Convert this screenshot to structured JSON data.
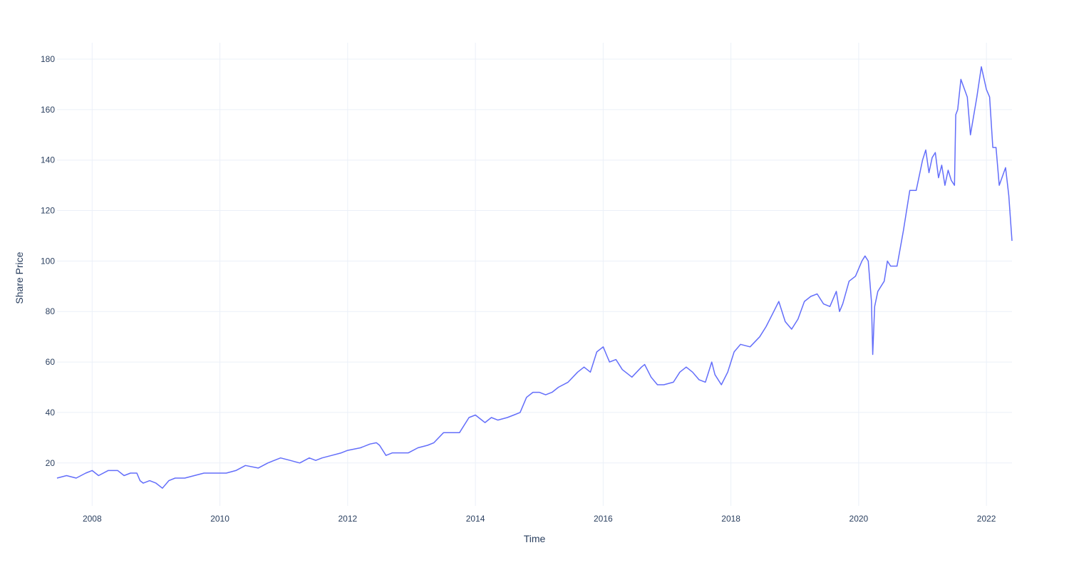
{
  "chart_data": {
    "type": "line",
    "title": "",
    "xlabel": "Time",
    "ylabel": "Share Price",
    "xlim": [
      2007.45,
      2022.4
    ],
    "ylim": [
      3,
      186.5
    ],
    "grid": true,
    "legend": "none",
    "x_ticks": [
      {
        "value": 2008,
        "label": "2008"
      },
      {
        "value": 2010,
        "label": "2010"
      },
      {
        "value": 2012,
        "label": "2012"
      },
      {
        "value": 2014,
        "label": "2014"
      },
      {
        "value": 2016,
        "label": "2016"
      },
      {
        "value": 2018,
        "label": "2018"
      },
      {
        "value": 2020,
        "label": "2020"
      },
      {
        "value": 2022,
        "label": "2022"
      }
    ],
    "y_ticks": [
      {
        "value": 20,
        "label": "20"
      },
      {
        "value": 40,
        "label": "40"
      },
      {
        "value": 60,
        "label": "60"
      },
      {
        "value": 80,
        "label": "80"
      },
      {
        "value": 100,
        "label": "100"
      },
      {
        "value": 120,
        "label": "120"
      },
      {
        "value": 140,
        "label": "140"
      },
      {
        "value": 160,
        "label": "160"
      },
      {
        "value": 180,
        "label": "180"
      }
    ],
    "colors": {
      "line": "#636efa",
      "grid": "#ebf0f8",
      "text": "#2a3f5f"
    },
    "series": [
      {
        "x": [
          2007.45,
          2007.6,
          2007.75,
          2007.9,
          2008.0,
          2008.1,
          2008.25,
          2008.4,
          2008.5,
          2008.6,
          2008.7,
          2008.75,
          2008.8,
          2008.9,
          2009.0,
          2009.1,
          2009.2,
          2009.3,
          2009.45,
          2009.6,
          2009.75,
          2009.9,
          2010.0,
          2010.1,
          2010.25,
          2010.4,
          2010.6,
          2010.75,
          2010.95,
          2011.1,
          2011.25,
          2011.4,
          2011.5,
          2011.6,
          2011.75,
          2011.9,
          2012.0,
          2012.2,
          2012.35,
          2012.45,
          2012.5,
          2012.6,
          2012.7,
          2012.8,
          2012.95,
          2013.1,
          2013.25,
          2013.35,
          2013.5,
          2013.65,
          2013.75,
          2013.9,
          2014.0,
          2014.1,
          2014.15,
          2014.25,
          2014.35,
          2014.5,
          2014.6,
          2014.7,
          2014.8,
          2014.9,
          2015.0,
          2015.1,
          2015.2,
          2015.3,
          2015.45,
          2015.6,
          2015.7,
          2015.8,
          2015.9,
          2016.0,
          2016.05,
          2016.1,
          2016.2,
          2016.3,
          2016.45,
          2016.6,
          2016.65,
          2016.75,
          2016.85,
          2016.95,
          2017.1,
          2017.2,
          2017.3,
          2017.4,
          2017.5,
          2017.6,
          2017.7,
          2017.75,
          2017.85,
          2017.95,
          2018.05,
          2018.15,
          2018.3,
          2018.45,
          2018.55,
          2018.65,
          2018.75,
          2018.85,
          2018.95,
          2019.05,
          2019.15,
          2019.25,
          2019.35,
          2019.45,
          2019.55,
          2019.65,
          2019.7,
          2019.75,
          2019.85,
          2019.95,
          2020.05,
          2020.1,
          2020.15,
          2020.2,
          2020.22,
          2020.25,
          2020.3,
          2020.4,
          2020.45,
          2020.5,
          2020.6,
          2020.7,
          2020.8,
          2020.9,
          2021.0,
          2021.05,
          2021.1,
          2021.15,
          2021.2,
          2021.25,
          2021.3,
          2021.35,
          2021.4,
          2021.45,
          2021.5,
          2021.52,
          2021.55,
          2021.6,
          2021.7,
          2021.75,
          2021.85,
          2021.92,
          2022.0,
          2022.05,
          2022.1,
          2022.15,
          2022.2,
          2022.3,
          2022.35,
          2022.4
        ],
        "y": [
          14,
          15,
          14,
          16,
          17,
          15,
          17,
          17,
          15,
          16,
          16,
          13,
          12,
          13,
          12,
          10,
          13,
          14,
          14,
          15,
          16,
          16,
          16,
          16,
          17,
          19,
          18,
          20,
          22,
          21,
          20,
          22,
          21,
          22,
          23,
          24,
          25,
          26,
          27.5,
          28,
          27,
          23,
          24,
          24,
          24,
          26,
          27,
          28,
          32,
          32,
          32,
          38,
          39,
          37,
          36,
          38,
          37,
          38,
          39,
          40,
          46,
          48,
          48,
          47,
          48,
          50,
          52,
          56,
          58,
          56,
          64,
          66,
          63,
          60,
          61,
          57,
          54,
          58,
          59,
          54,
          51,
          51,
          52,
          56,
          58,
          56,
          53,
          52,
          60,
          55,
          51,
          56,
          64,
          67,
          66,
          70,
          74,
          79,
          84,
          76,
          73,
          77,
          84,
          86,
          87,
          83,
          82,
          88,
          80,
          83,
          92,
          94,
          100,
          102,
          100,
          84,
          63,
          82,
          88,
          92,
          100,
          98,
          98,
          112,
          128,
          128,
          140,
          144,
          135,
          141,
          143,
          133,
          138,
          130,
          136,
          132,
          130,
          158,
          160,
          172,
          165,
          150,
          165,
          177,
          168,
          165,
          145,
          145,
          130,
          137,
          126,
          108
        ]
      }
    ]
  }
}
